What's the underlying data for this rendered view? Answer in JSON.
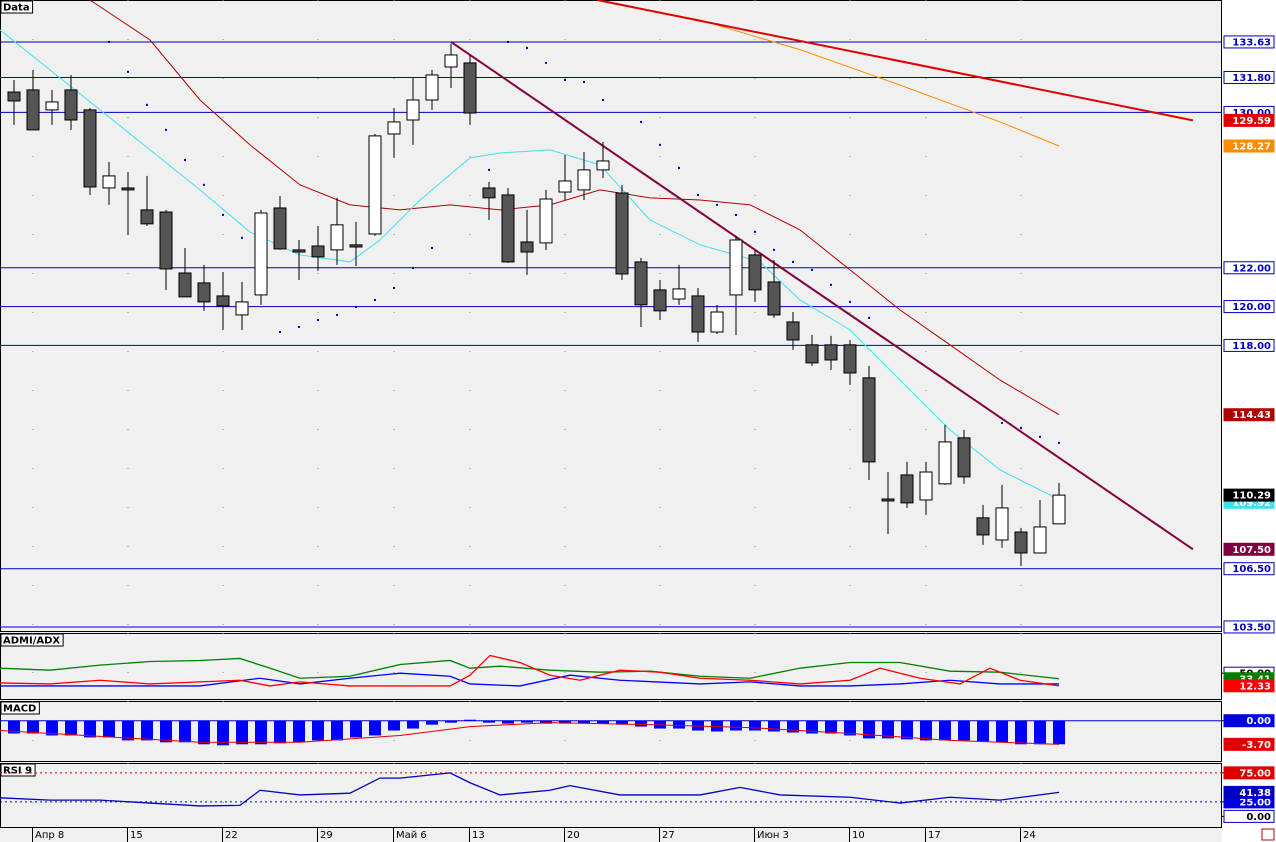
{
  "chart_data": [
    {
      "type": "candlestick",
      "title": "Data",
      "categories": [
        null,
        "Апр 8",
        null,
        null,
        null,
        null,
        "15",
        null,
        null,
        null,
        null,
        "22",
        null,
        null,
        null,
        null,
        "29",
        null,
        null,
        null,
        "Май 6",
        null,
        null,
        null,
        "13",
        null,
        null,
        null,
        null,
        "20",
        null,
        null,
        null,
        null,
        "27",
        null,
        null,
        null,
        null,
        "Июн 3",
        null,
        null,
        null,
        null,
        "10",
        null,
        null,
        null,
        "17",
        null,
        null,
        null,
        null,
        "24",
        null,
        null
      ],
      "open": [
        131.05,
        131.16,
        130.13,
        131.16,
        130.13,
        126.11,
        126.11,
        124.98,
        124.87,
        121.73,
        121.22,
        120.55,
        119.57,
        120.6,
        125.08,
        122.92,
        123.12,
        122.92,
        123.18,
        123.74,
        128.89,
        129.61,
        130.64,
        132.34,
        132.55,
        126.11,
        125.75,
        123.33,
        123.28,
        125.9,
        126.01,
        127.04,
        125.85,
        122.3,
        120.86,
        120.39,
        120.55,
        118.69,
        120.6,
        122.66,
        121.27,
        119.21,
        118.03,
        118.03,
        118.03,
        116.33,
        110.09,
        111.33,
        110.04,
        110.87,
        113.24,
        109.12,
        107.98,
        108.39,
        107.31,
        108.81
      ],
      "high": [
        131.67,
        132.19,
        131.16,
        131.93,
        130.23,
        127.45,
        126.93,
        126.73,
        124.98,
        123.02,
        122.15,
        121.78,
        121.27,
        124.98,
        125.7,
        123.43,
        124.15,
        125.6,
        124.36,
        128.89,
        130.23,
        131.78,
        132.19,
        133.53,
        132.96,
        126.42,
        126.11,
        124.98,
        126.01,
        127.81,
        127.96,
        128.48,
        126.27,
        122.51,
        121.37,
        122.15,
        120.96,
        120.09,
        123.64,
        122.92,
        122.4,
        119.72,
        118.54,
        118.49,
        118.28,
        116.94,
        111.48,
        112,
        112,
        113.91,
        113.65,
        109.79,
        110.82,
        108.6,
        110.04,
        110.92
      ],
      "low": [
        129.36,
        129.1,
        129.36,
        129.1,
        125.75,
        125.24,
        123.69,
        124.15,
        120.86,
        120.5,
        119.78,
        118.8,
        118.8,
        120.09,
        122.92,
        121.37,
        121.84,
        122.15,
        122.09,
        123.64,
        127.66,
        128.33,
        130.13,
        131.26,
        129.36,
        124.46,
        122.25,
        121.63,
        122.92,
        125.49,
        125.49,
        126.63,
        121.37,
        118.95,
        119.31,
        120.09,
        118.18,
        118.59,
        118.54,
        120.24,
        119.42,
        117.77,
        116.94,
        116.74,
        115.97,
        111.07,
        108.29,
        109.63,
        109.27,
        110.82,
        110.87,
        107.73,
        107.57,
        106.64,
        107.31,
        108.81
      ],
      "close": [
        130.59,
        129.1,
        130.54,
        129.61,
        126.16,
        126.73,
        126.01,
        124.26,
        121.94,
        120.5,
        120.24,
        120.03,
        120.24,
        124.82,
        122.97,
        122.81,
        122.56,
        124.21,
        123.07,
        128.79,
        129.51,
        130.64,
        131.93,
        132.96,
        129.97,
        125.6,
        122.3,
        122.81,
        125.54,
        126.47,
        127.04,
        127.5,
        121.68,
        120.09,
        119.78,
        120.91,
        118.69,
        119.72,
        123.43,
        120.86,
        119.57,
        118.28,
        117.1,
        117.25,
        116.58,
        112,
        109.99,
        109.89,
        111.48,
        113.03,
        111.23,
        108.24,
        109.63,
        107.31,
        108.65,
        110.29
      ],
      "up_color": "#ffffff",
      "down_color": "#555555",
      "ylim": [
        103.24,
        135.79
      ],
      "levels": [
        {
          "value": 133.63,
          "label": "133.63"
        },
        {
          "value": 131.8,
          "label": "131.80"
        },
        {
          "value": 130,
          "label": "130.00"
        },
        {
          "value": 122,
          "label": "122.00"
        },
        {
          "value": 120,
          "label": "120.00"
        },
        {
          "value": 118,
          "label": "118.00"
        },
        {
          "value": 106.5,
          "label": "106.50"
        },
        {
          "value": 103.5,
          "label": "103.50"
        }
      ],
      "level_color": "#0000c0",
      "overlays": [
        {
          "color": "#ff8c00",
          "x": [
            30.7,
            36.1,
            41.4,
            46.6,
            51.9,
            55
          ],
          "values": [
            135.79,
            134.76,
            133.22,
            131.42,
            129.51,
            128.27
          ],
          "last_label": "128.27"
        },
        {
          "color": "#b00000",
          "x": [
            4,
            7.16,
            9.79,
            12.42,
            15.05,
            17.68,
            20.32,
            22.95,
            25.58,
            28.21,
            30.84,
            33.47,
            36.11,
            38.74,
            41.37,
            44,
            46.63,
            49.26,
            51.89,
            55
          ],
          "values": [
            135.79,
            133.73,
            130.64,
            128.33,
            126.27,
            125.24,
            124.98,
            125.24,
            124.98,
            125.24,
            126.01,
            125.6,
            125.49,
            125.24,
            123.95,
            121.89,
            119.83,
            118.03,
            116.22,
            114.43
          ],
          "last_label": "114.43"
        },
        {
          "color": "#40e0f0",
          "x": [
            -0.74,
            1.89,
            4.53,
            7.16,
            9.79,
            12.42,
            15.05,
            17.68,
            19.26,
            21.37,
            24,
            25.58,
            28.21,
            30.84,
            33.47,
            36.11,
            39.26,
            41.37,
            44,
            46.63,
            49.26,
            51.89,
            54.53,
            55
          ],
          "values": [
            134.25,
            132.19,
            130.13,
            128.07,
            126.01,
            123.84,
            122.66,
            122.3,
            123.43,
            125.49,
            127.66,
            127.91,
            128.07,
            127.3,
            124.46,
            123.18,
            122.3,
            120.34,
            118.8,
            116.22,
            113.65,
            111.59,
            110.3,
            109.92
          ],
          "last_label": "109.92"
        },
        {
          "color": "#e00000",
          "x": [
            30.7,
            62.05
          ],
          "values": [
            135.79,
            129.59
          ],
          "last_label": "129.59"
        },
        {
          "color": "#800040",
          "x": [
            23,
            62.05
          ],
          "values": [
            133.63,
            107.5
          ],
          "last_label": "107.50"
        }
      ],
      "close_color": "#000000",
      "sar": {
        "color": "#0000c0",
        "values": [
          null,
          null,
          null,
          null,
          null,
          133.63,
          132.09,
          130.39,
          129.1,
          127.55,
          126.27,
          124.72,
          123.54,
          null,
          118.69,
          118.95,
          119.31,
          119.57,
          119.98,
          120.34,
          120.96,
          121.99,
          123.02,
          null,
          null,
          127.04,
          133.63,
          133.32,
          132.55,
          131.67,
          131.57,
          130.64,
          null,
          129.51,
          128.33,
          127.14,
          125.75,
          125.24,
          124.72,
          123.85,
          122.92,
          122.3,
          121.89,
          121.12,
          120.24,
          119.42,
          null,
          null,
          null,
          null,
          null,
          null,
          114.01,
          113.75,
          113.29,
          112.98
        ]
      }
    },
    {
      "type": "line",
      "title": "ADMI/ADX",
      "ylim": [
        -30,
        170
      ],
      "yticks": [
        {
          "value": 50,
          "label": "50.00"
        }
      ],
      "tick_colors": [
        null
      ],
      "series": [
        {
          "color": "#008000",
          "x": [
            -0.74,
            1.89,
            4.53,
            7.16,
            9.79,
            11.89,
            13.47,
            15.05,
            17.68,
            20.32,
            22.95,
            24,
            25.58,
            28.21,
            30.84,
            33.47,
            36.11,
            38.74,
            41.37,
            44,
            46.63,
            49.26,
            51.89,
            55
          ],
          "values": [
            65,
            59,
            74,
            85,
            88,
            94,
            65,
            35,
            41,
            76,
            88,
            65,
            71,
            59,
            53,
            56,
            41,
            35,
            65,
            82,
            82,
            56,
            53,
            33.41
          ],
          "last_label": "33.41"
        },
        {
          "color": "#0000ff",
          "x": [
            -0.74,
            4.53,
            9.79,
            12.95,
            15.05,
            17.68,
            20.32,
            22.95,
            24,
            26.63,
            29.26,
            31.89,
            36.11,
            38.74,
            41.37,
            44,
            46.63,
            49.26,
            51.89,
            55
          ],
          "values": [
            12,
            12,
            12,
            35,
            18,
            35,
            50,
            41,
            18,
            12,
            44,
            29,
            18,
            24,
            12,
            12,
            18,
            29,
            18,
            18
          ]
        },
        {
          "color": "#ff0000",
          "x": [
            -0.74,
            1.89,
            4.53,
            7.16,
            9.79,
            11.89,
            13.47,
            15.05,
            17.68,
            20.32,
            22.95,
            24,
            25.05,
            26.63,
            28.21,
            29.79,
            31.89,
            34,
            36.11,
            38.74,
            41.37,
            44,
            45.58,
            47.68,
            49.79,
            51.37,
            52.95,
            55
          ],
          "values": [
            21,
            18,
            29,
            18,
            24,
            29,
            12,
            24,
            12,
            12,
            12,
            44,
            103,
            82,
            44,
            29,
            59,
            53,
            35,
            29,
            18,
            29,
            65,
            35,
            18,
            65,
            29,
            12.33
          ],
          "last_label": "12.33"
        }
      ]
    },
    {
      "type": "bar",
      "title": "MACD",
      "ylim": [
        -6.46,
        3.08
      ],
      "yticks": [
        {
          "value": 0,
          "label": "0.00"
        }
      ],
      "tick_colors": [
        "#0000e0"
      ],
      "color": "#0000ff",
      "values": [
        -2,
        -2,
        -2.31,
        -2.31,
        -2.62,
        -2.62,
        -3.08,
        -3.08,
        -3.38,
        -3.38,
        -3.69,
        -3.85,
        -3.69,
        -3.69,
        -3.54,
        -3.38,
        -3.08,
        -3.08,
        -2.62,
        -2.31,
        -1.54,
        -1.23,
        -0.62,
        -0.31,
        0.15,
        -0.31,
        -0.46,
        -0.31,
        -0.46,
        -0.46,
        -0.46,
        -0.46,
        -0.62,
        -0.92,
        -1.23,
        -1.23,
        -1.54,
        -1.69,
        -1.54,
        -1.54,
        -1.69,
        -1.85,
        -2,
        -2,
        -2.31,
        -2.77,
        -2.77,
        -2.92,
        -3.08,
        -3.08,
        -3.08,
        -3.23,
        -3.38,
        -3.69,
        -3.69,
        -3.69
      ],
      "series": [
        {
          "color": "#e00000",
          "x": [
            -0.74,
            4.53,
            9.79,
            15.05,
            20.32,
            24,
            28.21,
            33.47,
            38.74,
            44,
            49.26,
            55
          ],
          "values": [
            -1.54,
            -2.46,
            -3.38,
            -3.38,
            -2.31,
            -0.92,
            -0.31,
            -0.62,
            -1.08,
            -2,
            -3.08,
            -3.7
          ],
          "last_label": "-3.70"
        }
      ]
    },
    {
      "type": "line",
      "title": "RSI 9",
      "ylim": [
        -20,
        92
      ],
      "yticks": [
        {
          "value": 0,
          "label": "0.00"
        },
        {
          "value": 25,
          "label": "25.00"
        },
        {
          "value": 75,
          "label": "75.00"
        }
      ],
      "tick_colors": [
        null,
        "#0000e0",
        "#e00000"
      ],
      "series": [
        {
          "color": "#0000c0",
          "x": [
            -0.74,
            1.89,
            4.53,
            7.16,
            9.79,
            11.89,
            12.95,
            15.05,
            17.68,
            19.26,
            20.32,
            22.95,
            24,
            25.58,
            28.21,
            29.26,
            31.89,
            36.11,
            38.21,
            40.32,
            44,
            46.63,
            49.26,
            51.89,
            55
          ],
          "values": [
            32,
            28,
            28,
            23,
            18,
            19,
            45,
            37,
            40,
            66,
            66,
            75,
            58,
            37,
            45,
            53,
            37,
            37,
            50,
            37,
            33,
            23,
            33,
            28,
            41.38
          ],
          "last_label": "41.38"
        }
      ]
    }
  ]
}
